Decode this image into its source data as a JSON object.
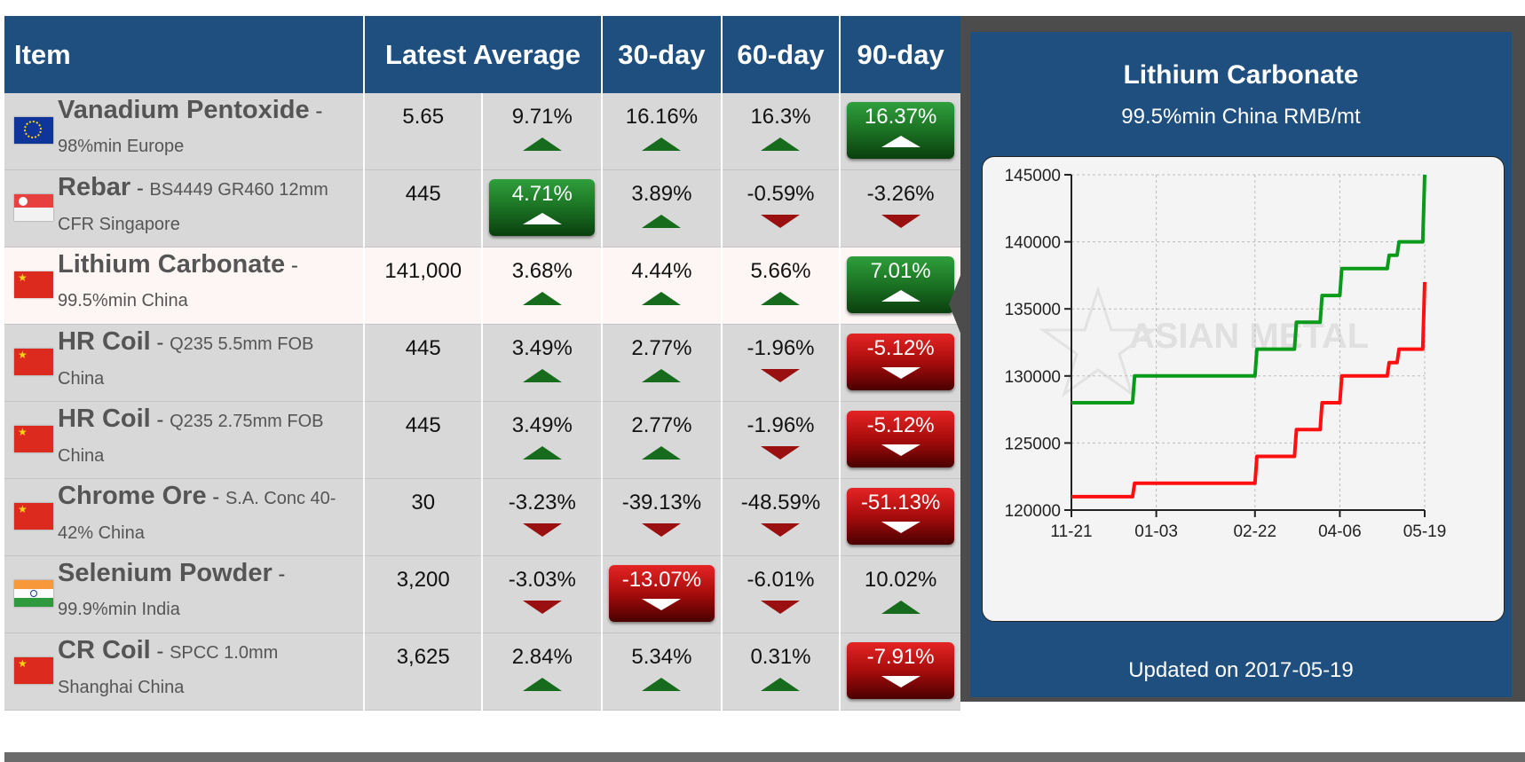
{
  "table": {
    "headers": {
      "item": "Item",
      "latest_average": "Latest Average",
      "d30": "30-day",
      "d60": "60-day",
      "d90": "90-day"
    },
    "rows": [
      {
        "flag": "eu",
        "name": "Vanadium Pentoxide",
        "sep": "-",
        "spec": "98%min Europe",
        "latest": "5.65",
        "change": "9.71%",
        "d30": "16.16%",
        "d60": "16.3%",
        "d90": "16.37%"
      },
      {
        "flag": "sg",
        "name": "Rebar",
        "sep": "-",
        "spec": "BS4449 GR460 12mm CFR Singapore",
        "latest": "445",
        "change": "4.71%",
        "d30": "3.89%",
        "d60": "-0.59%",
        "d90": "-3.26%"
      },
      {
        "flag": "cn",
        "name": "Lithium Carbonate",
        "sep": "-",
        "spec": "99.5%min China",
        "latest": "141,000",
        "change": "3.68%",
        "d30": "4.44%",
        "d60": "5.66%",
        "d90": "7.01%"
      },
      {
        "flag": "cn",
        "name": "HR Coil",
        "sep": "-",
        "spec": "Q235 5.5mm FOB China",
        "latest": "445",
        "change": "3.49%",
        "d30": "2.77%",
        "d60": "-1.96%",
        "d90": "-5.12%"
      },
      {
        "flag": "cn",
        "name": "HR Coil",
        "sep": "-",
        "spec": "Q235 2.75mm FOB China",
        "latest": "445",
        "change": "3.49%",
        "d30": "2.77%",
        "d60": "-1.96%",
        "d90": "-5.12%"
      },
      {
        "flag": "cn",
        "name": "Chrome Ore",
        "sep": "-",
        "spec": "S.A. Conc 40-42% China",
        "latest": "30",
        "change": "-3.23%",
        "d30": "-39.13%",
        "d60": "-48.59%",
        "d90": "-51.13%"
      },
      {
        "flag": "in",
        "name": "Selenium Powder",
        "sep": "-",
        "spec": "99.9%min India",
        "latest": "3,200",
        "change": "-3.03%",
        "d30": "-13.07%",
        "d60": "-6.01%",
        "d90": "10.02%"
      },
      {
        "flag": "cn",
        "name": "CR Coil",
        "sep": "-",
        "spec": "SPCC 1.0mm Shanghai China",
        "latest": "3,625",
        "change": "2.84%",
        "d30": "5.34%",
        "d60": "0.31%",
        "d90": "-7.91%"
      }
    ]
  },
  "chart_panel": {
    "title": "Lithium Carbonate",
    "subtitle": "99.5%min China RMB/mt",
    "updated": "Updated on 2017-05-19"
  },
  "colors": {
    "header_blue": "#1f4f7e",
    "up_green": "#1c7424",
    "down_red": "#a80c0c",
    "series_high": "#0a9a1a",
    "series_low": "#ff1010"
  },
  "chart_data": {
    "type": "line",
    "title": "",
    "xlabel": "",
    "ylabel": "",
    "x_ticks": [
      "11-21",
      "01-03",
      "02-22",
      "04-06",
      "05-19"
    ],
    "y_ticks": [
      120000,
      125000,
      130000,
      135000,
      140000,
      145000
    ],
    "ylim": [
      120000,
      145000
    ],
    "grid": true,
    "series": [
      {
        "color": "#0a9a1a",
        "points": [
          [
            "11-21",
            128000
          ],
          [
            "12-22",
            128000
          ],
          [
            "12-23",
            130000
          ],
          [
            "02-22",
            130000
          ],
          [
            "02-23",
            132000
          ],
          [
            "03-14",
            132000
          ],
          [
            "03-15",
            134000
          ],
          [
            "03-27",
            134000
          ],
          [
            "03-28",
            136000
          ],
          [
            "04-06",
            136000
          ],
          [
            "04-07",
            138000
          ],
          [
            "04-30",
            138000
          ],
          [
            "05-01",
            139000
          ],
          [
            "05-05",
            139000
          ],
          [
            "05-06",
            140000
          ],
          [
            "05-18",
            140000
          ],
          [
            "05-19",
            145000
          ]
        ]
      },
      {
        "color": "#ff1010",
        "points": [
          [
            "11-21",
            121000
          ],
          [
            "12-22",
            121000
          ],
          [
            "12-23",
            122000
          ],
          [
            "02-22",
            122000
          ],
          [
            "02-23",
            124000
          ],
          [
            "03-14",
            124000
          ],
          [
            "03-15",
            126000
          ],
          [
            "03-27",
            126000
          ],
          [
            "03-28",
            128000
          ],
          [
            "04-06",
            128000
          ],
          [
            "04-07",
            130000
          ],
          [
            "04-30",
            130000
          ],
          [
            "05-01",
            131000
          ],
          [
            "05-05",
            131000
          ],
          [
            "05-06",
            132000
          ],
          [
            "05-18",
            132000
          ],
          [
            "05-19",
            137000
          ]
        ]
      }
    ]
  }
}
